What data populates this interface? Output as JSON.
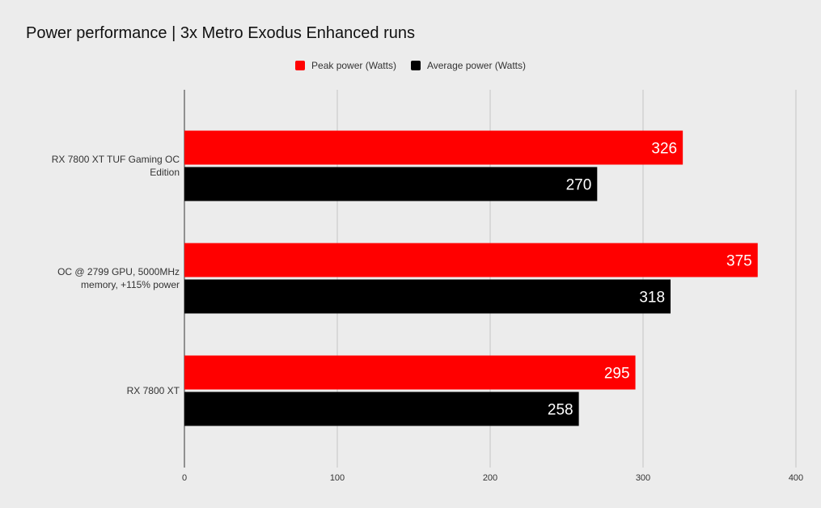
{
  "chart_data": {
    "type": "bar",
    "orientation": "horizontal",
    "title": "Power performance | 3x Metro Exodus Enhanced runs",
    "xlabel": "",
    "ylabel": "",
    "categories": [
      "RX 7800 XT TUF Gaming OC Edition",
      "OC @ 2799 GPU, 5000MHz memory, +115% power",
      "RX 7800 XT"
    ],
    "series": [
      {
        "name": "Peak power (Watts)",
        "color": "#ff0000",
        "values": [
          326,
          375,
          295
        ]
      },
      {
        "name": "Average power (Watts)",
        "color": "#000000",
        "values": [
          270,
          318,
          258
        ]
      }
    ],
    "xlim": [
      0,
      400
    ],
    "x_ticks": [
      "0",
      "100",
      "200",
      "300",
      "400"
    ],
    "grid": "vertical",
    "legend_position": "top-center",
    "data_labels": "inside-end"
  }
}
